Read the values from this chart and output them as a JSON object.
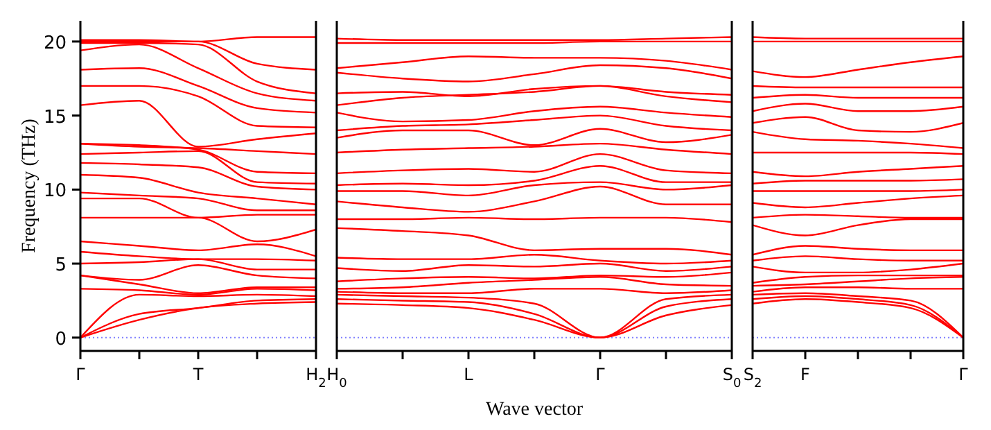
{
  "chart_data": [
    {
      "type": "line",
      "ylabel": "Frequency (THz)",
      "categories": [
        "Γ",
        null,
        "T",
        null,
        "H$_{2}$"
      ],
      "ylim": [
        -0.9,
        21.4
      ],
      "yticks": [
        0,
        5,
        10,
        15,
        20
      ],
      "ref_lines": [
        {
          "axis": "y",
          "value": 0,
          "color": "#8080ff",
          "line_style": "dotted"
        }
      ],
      "series": [
        {
          "color": "#ff0000",
          "values": [
            0,
            1.2,
            2.0,
            2.3,
            2.4
          ]
        },
        {
          "color": "#ff0000",
          "values": [
            0,
            1.6,
            2.0,
            2.5,
            2.6
          ]
        },
        {
          "color": "#ff0000",
          "values": [
            0,
            2.9,
            2.8,
            2.9,
            2.8
          ]
        },
        {
          "color": "#ff0000",
          "values": [
            3.3,
            3.2,
            2.9,
            3.3,
            3.2
          ]
        },
        {
          "color": "#ff0000",
          "values": [
            4.2,
            3.6,
            3.0,
            3.4,
            3.4
          ]
        },
        {
          "color": "#ff0000",
          "values": [
            4.2,
            3.9,
            4.9,
            4.2,
            4.0
          ]
        },
        {
          "color": "#ff0000",
          "values": [
            5.0,
            5.1,
            5.3,
            4.6,
            4.6
          ]
        },
        {
          "color": "#ff0000",
          "values": [
            5.8,
            5.5,
            5.3,
            5.3,
            5.2
          ]
        },
        {
          "color": "#ff0000",
          "values": [
            6.5,
            6.2,
            5.9,
            6.3,
            5.5
          ]
        },
        {
          "color": "#ff0000",
          "values": [
            8.1,
            8.1,
            8.1,
            6.5,
            7.3
          ]
        },
        {
          "color": "#ff0000",
          "values": [
            9.4,
            9.4,
            8.1,
            8.3,
            8.3
          ]
        },
        {
          "color": "#ff0000",
          "values": [
            9.8,
            9.6,
            9.4,
            8.6,
            8.6
          ]
        },
        {
          "color": "#ff0000",
          "values": [
            11.0,
            10.8,
            9.8,
            9.4,
            9.0
          ]
        },
        {
          "color": "#ff0000",
          "values": [
            11.8,
            11.7,
            11.5,
            10.2,
            10.0
          ]
        },
        {
          "color": "#ff0000",
          "values": [
            12.4,
            12.5,
            12.6,
            10.5,
            10.4
          ]
        },
        {
          "color": "#ff0000",
          "values": [
            13.1,
            13.0,
            12.7,
            11.2,
            11.1
          ]
        },
        {
          "color": "#ff0000",
          "values": [
            13.1,
            12.9,
            12.8,
            12.6,
            12.4
          ]
        },
        {
          "color": "#ff0000",
          "values": [
            15.7,
            16.0,
            12.9,
            13.4,
            13.8
          ]
        },
        {
          "color": "#ff0000",
          "values": [
            17.0,
            17.0,
            16.3,
            14.3,
            14.2
          ]
        },
        {
          "color": "#ff0000",
          "values": [
            18.1,
            18.2,
            17.0,
            15.5,
            15.2
          ]
        },
        {
          "color": "#ff0000",
          "values": [
            19.4,
            19.8,
            18.2,
            16.5,
            16.0
          ]
        },
        {
          "color": "#ff0000",
          "values": [
            19.9,
            19.9,
            19.8,
            17.3,
            16.5
          ]
        },
        {
          "color": "#ff0000",
          "values": [
            20.0,
            20.0,
            20.0,
            18.5,
            18.1
          ]
        },
        {
          "color": "#ff0000",
          "values": [
            20.1,
            20.1,
            20.0,
            20.3,
            20.3
          ]
        }
      ]
    },
    {
      "type": "line",
      "xlabel": "Wave vector",
      "tick_labels": "x",
      "categories": [
        "H$_{0}$",
        null,
        "L",
        null,
        "Γ",
        null,
        "S$_{0}$"
      ],
      "ylim": [
        -0.9,
        21.4
      ],
      "yticks": [
        0,
        5,
        10,
        15,
        20
      ],
      "ref_lines": [
        {
          "axis": "y",
          "value": 0,
          "color": "#8080ff",
          "line_style": "dotted"
        }
      ],
      "series": [
        {
          "color": "#ff0000",
          "values": [
            2.3,
            2.2,
            2.0,
            1.2,
            0,
            1.5,
            2.2
          ]
        },
        {
          "color": "#ff0000",
          "values": [
            2.6,
            2.5,
            2.4,
            1.6,
            0,
            2.1,
            2.6
          ]
        },
        {
          "color": "#ff0000",
          "values": [
            2.9,
            2.8,
            2.7,
            2.3,
            0,
            2.6,
            2.9
          ]
        },
        {
          "color": "#ff0000",
          "values": [
            3.1,
            3.0,
            3.0,
            3.3,
            3.3,
            3.0,
            3.2
          ]
        },
        {
          "color": "#ff0000",
          "values": [
            3.3,
            3.4,
            3.7,
            3.9,
            4.1,
            3.6,
            3.5
          ]
        },
        {
          "color": "#ff0000",
          "values": [
            3.8,
            4.0,
            4.1,
            4.0,
            4.2,
            4.1,
            4.4
          ]
        },
        {
          "color": "#ff0000",
          "values": [
            4.7,
            4.5,
            4.9,
            4.8,
            5.0,
            4.5,
            4.8
          ]
        },
        {
          "color": "#ff0000",
          "values": [
            5.4,
            5.3,
            5.3,
            5.6,
            5.2,
            5.0,
            5.2
          ]
        },
        {
          "color": "#ff0000",
          "values": [
            7.4,
            7.2,
            6.9,
            5.9,
            6.0,
            6.0,
            5.6
          ]
        },
        {
          "color": "#ff0000",
          "values": [
            8.0,
            8.0,
            8.1,
            8.0,
            8.1,
            8.1,
            7.8
          ]
        },
        {
          "color": "#ff0000",
          "values": [
            9.2,
            8.8,
            8.5,
            9.2,
            10.2,
            9.0,
            9.0
          ]
        },
        {
          "color": "#ff0000",
          "values": [
            9.9,
            9.9,
            9.6,
            10.3,
            10.5,
            10.0,
            10.3
          ]
        },
        {
          "color": "#ff0000",
          "values": [
            10.3,
            10.4,
            10.3,
            10.6,
            11.6,
            10.5,
            10.5
          ]
        },
        {
          "color": "#ff0000",
          "values": [
            11.1,
            11.3,
            11.4,
            11.2,
            12.4,
            11.3,
            11.1
          ]
        },
        {
          "color": "#ff0000",
          "values": [
            12.5,
            12.7,
            12.8,
            12.9,
            13.1,
            12.7,
            12.4
          ]
        },
        {
          "color": "#ff0000",
          "values": [
            13.5,
            14.0,
            14.0,
            13.0,
            14.1,
            13.2,
            13.7
          ]
        },
        {
          "color": "#ff0000",
          "values": [
            14.0,
            14.3,
            14.4,
            14.7,
            15.0,
            14.3,
            14.0
          ]
        },
        {
          "color": "#ff0000",
          "values": [
            15.2,
            14.6,
            14.7,
            15.3,
            15.6,
            15.2,
            14.9
          ]
        },
        {
          "color": "#ff0000",
          "values": [
            15.7,
            16.2,
            16.4,
            16.6,
            17.0,
            16.3,
            15.9
          ]
        },
        {
          "color": "#ff0000",
          "values": [
            16.5,
            16.6,
            16.3,
            16.8,
            17.0,
            16.6,
            16.4
          ]
        },
        {
          "color": "#ff0000",
          "values": [
            17.9,
            17.5,
            17.3,
            17.8,
            18.4,
            18.2,
            17.5
          ]
        },
        {
          "color": "#ff0000",
          "values": [
            18.2,
            18.6,
            19.0,
            18.9,
            18.9,
            18.7,
            18.1
          ]
        },
        {
          "color": "#ff0000",
          "values": [
            19.9,
            19.9,
            19.9,
            19.9,
            20.0,
            20.0,
            20.0
          ]
        },
        {
          "color": "#ff0000",
          "values": [
            20.2,
            20.1,
            20.1,
            20.1,
            20.1,
            20.2,
            20.3
          ]
        }
      ]
    },
    {
      "type": "line",
      "tick_labels": "x",
      "categories": [
        "S$_{2}$",
        "F",
        null,
        null,
        "Γ"
      ],
      "ylim": [
        -0.9,
        21.4
      ],
      "yticks": [
        0,
        5,
        10,
        15,
        20
      ],
      "ref_lines": [
        {
          "axis": "y",
          "value": 0,
          "color": "#8080ff",
          "line_style": "dotted"
        }
      ],
      "series": [
        {
          "color": "#ff0000",
          "values": [
            2.3,
            2.6,
            2.4,
            2.0,
            0
          ]
        },
        {
          "color": "#ff0000",
          "values": [
            2.6,
            2.8,
            2.6,
            2.2,
            0
          ]
        },
        {
          "color": "#ff0000",
          "values": [
            2.9,
            3.0,
            2.8,
            2.5,
            0
          ]
        },
        {
          "color": "#ff0000",
          "values": [
            3.1,
            3.4,
            3.4,
            3.3,
            3.3
          ]
        },
        {
          "color": "#ff0000",
          "values": [
            3.5,
            3.6,
            3.8,
            4.0,
            4.1
          ]
        },
        {
          "color": "#ff0000",
          "values": [
            3.7,
            4.1,
            4.2,
            4.2,
            4.2
          ]
        },
        {
          "color": "#ff0000",
          "values": [
            4.8,
            4.4,
            4.4,
            4.6,
            5.0
          ]
        },
        {
          "color": "#ff0000",
          "values": [
            5.2,
            5.5,
            5.3,
            5.2,
            5.2
          ]
        },
        {
          "color": "#ff0000",
          "values": [
            5.6,
            6.2,
            6.0,
            5.9,
            5.9
          ]
        },
        {
          "color": "#ff0000",
          "values": [
            7.6,
            6.9,
            7.6,
            8.0,
            8.0
          ]
        },
        {
          "color": "#ff0000",
          "values": [
            8.1,
            8.3,
            8.2,
            8.1,
            8.1
          ]
        },
        {
          "color": "#ff0000",
          "values": [
            9.1,
            8.8,
            9.1,
            9.4,
            9.6
          ]
        },
        {
          "color": "#ff0000",
          "values": [
            9.9,
            9.9,
            9.9,
            9.9,
            10.0
          ]
        },
        {
          "color": "#ff0000",
          "values": [
            10.4,
            10.6,
            10.6,
            10.6,
            10.7
          ]
        },
        {
          "color": "#ff0000",
          "values": [
            11.2,
            10.9,
            11.2,
            11.4,
            11.6
          ]
        },
        {
          "color": "#ff0000",
          "values": [
            12.5,
            12.5,
            12.5,
            12.5,
            12.4
          ]
        },
        {
          "color": "#ff0000",
          "values": [
            13.9,
            13.4,
            13.3,
            13.1,
            12.8
          ]
        },
        {
          "color": "#ff0000",
          "values": [
            14.5,
            14.9,
            14.0,
            13.9,
            14.5
          ]
        },
        {
          "color": "#ff0000",
          "values": [
            15.3,
            15.8,
            15.3,
            15.3,
            15.6
          ]
        },
        {
          "color": "#ff0000",
          "values": [
            16.2,
            16.4,
            16.2,
            16.2,
            16.2
          ]
        },
        {
          "color": "#ff0000",
          "values": [
            17.0,
            16.9,
            16.9,
            16.9,
            16.9
          ]
        },
        {
          "color": "#ff0000",
          "values": [
            18.0,
            17.6,
            18.1,
            18.6,
            19.0
          ]
        },
        {
          "color": "#ff0000",
          "values": [
            20.0,
            20.0,
            20.0,
            20.0,
            20.0
          ]
        },
        {
          "color": "#ff0000",
          "values": [
            20.3,
            20.2,
            20.2,
            20.2,
            20.2
          ]
        }
      ]
    }
  ]
}
